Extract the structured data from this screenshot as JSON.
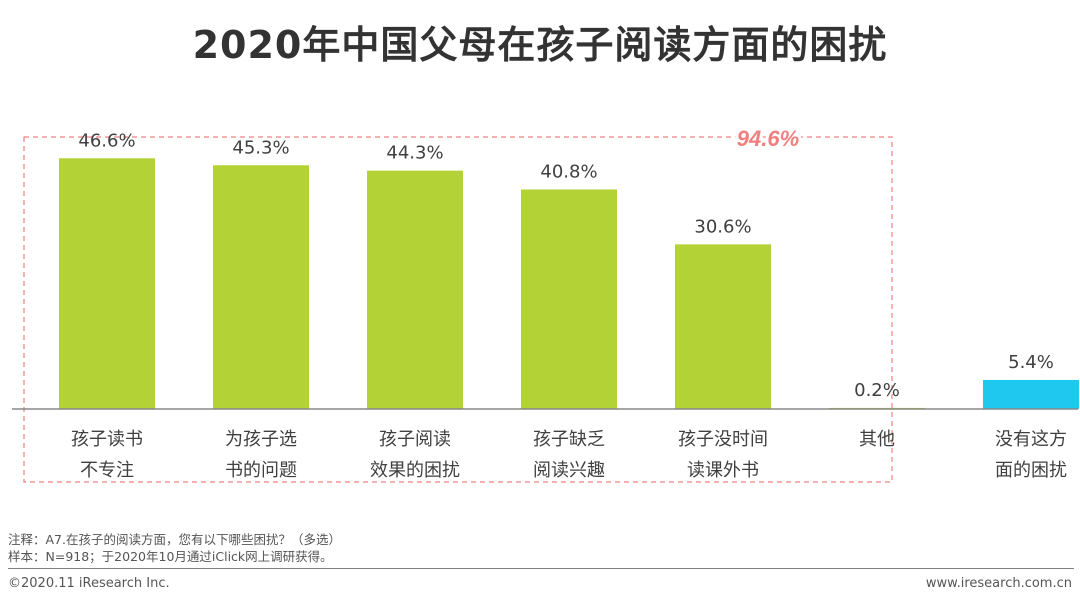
{
  "title": "2020年中国父母在孩子阅读方面的困扰",
  "chart_data": {
    "type": "bar",
    "title": "2020年中国父母在孩子阅读方面的困扰",
    "categories": [
      [
        "孩子读书",
        "不专注"
      ],
      [
        "为孩子选",
        "书的问题"
      ],
      [
        "孩子阅读",
        "效果的困扰"
      ],
      [
        "孩子缺乏",
        "阅读兴趣"
      ],
      [
        "孩子没时间",
        "读课外书"
      ],
      [
        "其他"
      ],
      [
        "没有这方",
        "面的困扰"
      ]
    ],
    "values": [
      46.6,
      45.3,
      44.3,
      40.8,
      30.6,
      0.2,
      5.4
    ],
    "value_labels": [
      "46.6%",
      "45.3%",
      "44.3%",
      "40.8%",
      "30.6%",
      "0.2%",
      "5.4%"
    ],
    "bar_colors": [
      "#b2d235",
      "#b2d235",
      "#b2d235",
      "#b2d235",
      "#b2d235",
      "#b2d235",
      "#1fc8ef"
    ],
    "unit": "%",
    "ylim": [
      0,
      50
    ],
    "grid": false,
    "annotation": {
      "text": "94.6%",
      "color": "#f08080",
      "groups_first_n_categories": 6
    }
  },
  "notes": {
    "line1": "注释：A7.在孩子的阅读方面，您有以下哪些困扰？（多选）",
    "line2": "样本：N=918；于2020年10月通过iClick网上调研获得。"
  },
  "footer": {
    "copyright": "©2020.11 iResearch Inc.",
    "site": "www.iresearch.com.cn"
  }
}
